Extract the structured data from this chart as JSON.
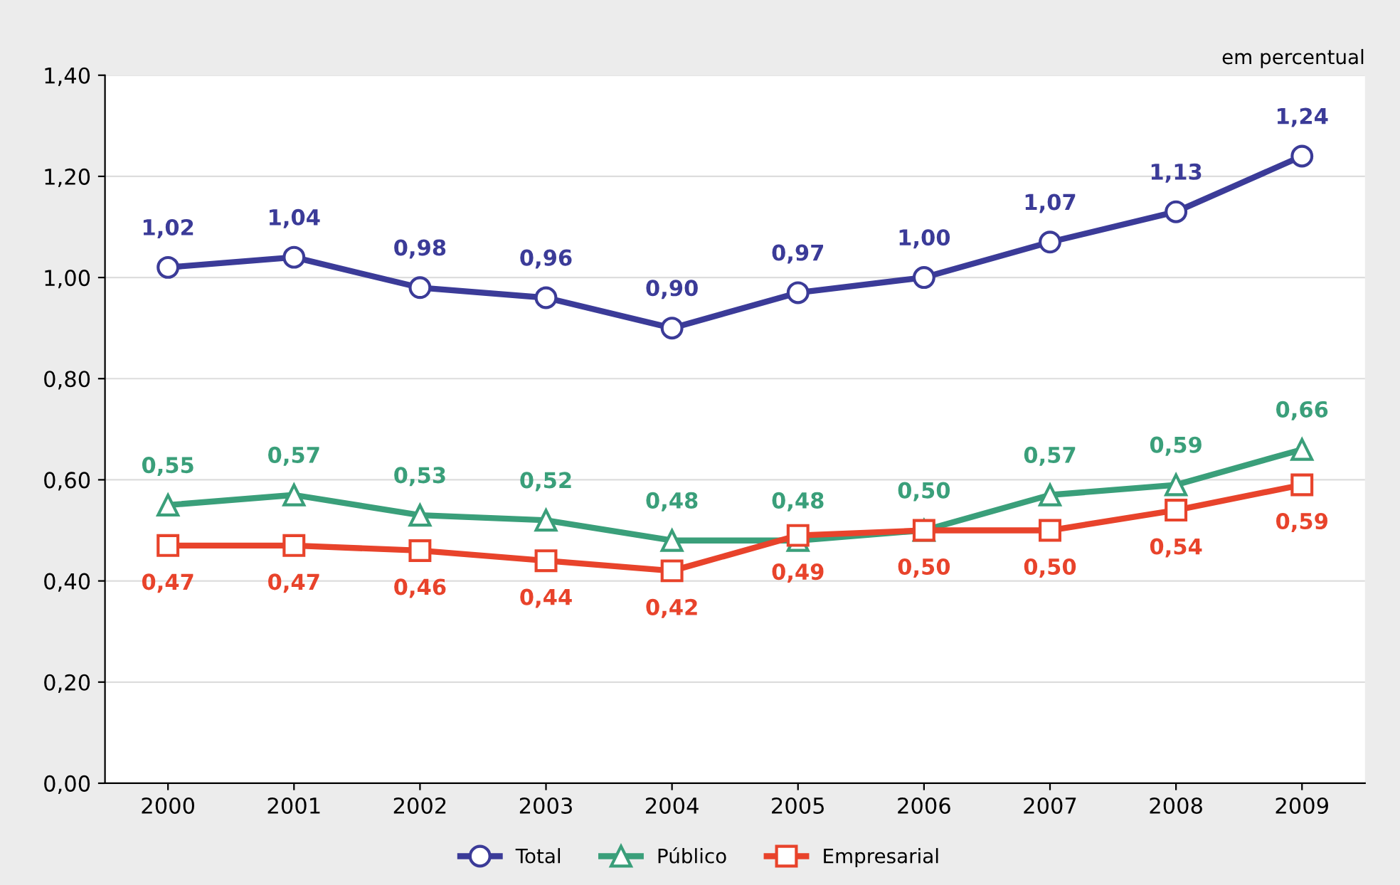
{
  "chart_data": {
    "type": "line",
    "categories": [
      "2000",
      "2001",
      "2002",
      "2003",
      "2004",
      "2005",
      "2006",
      "2007",
      "2008",
      "2009"
    ],
    "series": [
      {
        "name": "Total",
        "color": "#3b3b98",
        "marker": "circle",
        "values": [
          1.02,
          1.04,
          0.98,
          0.96,
          0.9,
          0.97,
          1.0,
          1.07,
          1.13,
          1.24
        ],
        "value_labels": [
          "1,02",
          "1,04",
          "0,98",
          "0,96",
          "0,90",
          "0,97",
          "1,00",
          "1,07",
          "1,13",
          "1,24"
        ]
      },
      {
        "name": "Público",
        "color": "#3a9f7a",
        "marker": "triangle",
        "values": [
          0.55,
          0.57,
          0.53,
          0.52,
          0.48,
          0.48,
          0.5,
          0.57,
          0.59,
          0.66
        ],
        "value_labels": [
          "0,55",
          "0,57",
          "0,53",
          "0,52",
          "0,48",
          "0,48",
          "0,50",
          "0,57",
          "0,59",
          "0,66"
        ]
      },
      {
        "name": "Empresarial",
        "color": "#e8432b",
        "marker": "square",
        "values": [
          0.47,
          0.47,
          0.46,
          0.44,
          0.42,
          0.49,
          0.5,
          0.5,
          0.54,
          0.59
        ],
        "value_labels": [
          "0,47",
          "0,47",
          "0,46",
          "0,44",
          "0,42",
          "0,49",
          "0,50",
          "0,50",
          "0,54",
          "0,59"
        ]
      }
    ],
    "ylim": [
      0,
      1.4
    ],
    "yticks": [
      {
        "value": 0,
        "label": "0,00"
      },
      {
        "value": 0.2,
        "label": "0,20"
      },
      {
        "value": 0.4,
        "label": "0,40"
      },
      {
        "value": 0.6,
        "label": "0,60"
      },
      {
        "value": 0.8,
        "label": "0,80"
      },
      {
        "value": 1.0,
        "label": "1,00"
      },
      {
        "value": 1.2,
        "label": "1,20"
      },
      {
        "value": 1.4,
        "label": "1,40"
      }
    ],
    "grid": "y",
    "legend": "bottom",
    "line_style": "solid",
    "annotations": [
      "em percentual"
    ]
  }
}
